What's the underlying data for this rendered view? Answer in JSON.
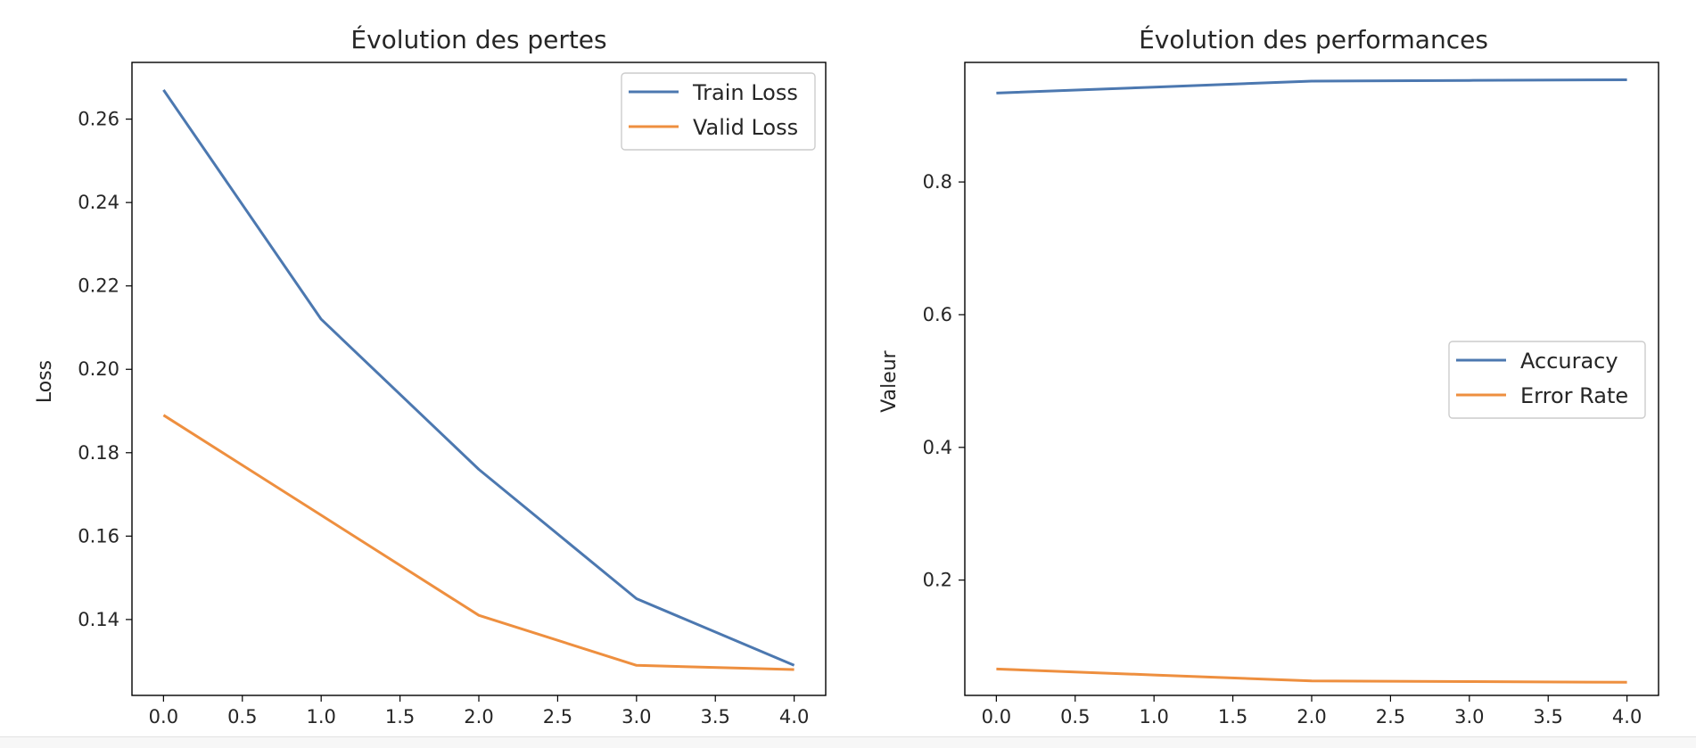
{
  "chart_data": [
    {
      "type": "line",
      "title": "Évolution des pertes",
      "xlabel": "",
      "ylabel": "Loss",
      "x": [
        0,
        1,
        2,
        3,
        4
      ],
      "xlim": [
        -0.2,
        4.2
      ],
      "ylim": [
        0.1218,
        0.2736
      ],
      "xticks": [
        0.0,
        0.5,
        1.0,
        1.5,
        2.0,
        2.5,
        3.0,
        3.5,
        4.0
      ],
      "xtick_labels": [
        "0.0",
        "0.5",
        "1.0",
        "1.5",
        "2.0",
        "2.5",
        "3.0",
        "3.5",
        "4.0"
      ],
      "yticks": [
        0.14,
        0.16,
        0.18,
        0.2,
        0.22,
        0.24,
        0.26
      ],
      "ytick_labels": [
        "0.14",
        "0.16",
        "0.18",
        "0.20",
        "0.22",
        "0.24",
        "0.26"
      ],
      "grid": false,
      "legend": "top-right",
      "series": [
        {
          "name": "Train Loss",
          "color": "#4c78b0",
          "values": [
            0.267,
            0.212,
            0.176,
            0.145,
            0.129
          ]
        },
        {
          "name": "Valid Loss",
          "color": "#ee8f3f",
          "values": [
            0.189,
            0.165,
            0.141,
            0.129,
            0.128
          ]
        }
      ]
    },
    {
      "type": "line",
      "title": "Évolution des performances",
      "xlabel": "",
      "ylabel": "Valeur",
      "x": [
        0,
        1,
        2,
        3,
        4
      ],
      "xlim": [
        -0.2,
        4.2
      ],
      "ylim": [
        0.0262,
        0.9802
      ],
      "xticks": [
        0.0,
        0.5,
        1.0,
        1.5,
        2.0,
        2.5,
        3.0,
        3.5,
        4.0
      ],
      "xtick_labels": [
        "0.0",
        "0.5",
        "1.0",
        "1.5",
        "2.0",
        "2.5",
        "3.0",
        "3.5",
        "4.0"
      ],
      "yticks": [
        0.2,
        0.4,
        0.6,
        0.8
      ],
      "ytick_labels": [
        "0.2",
        "0.4",
        "0.6",
        "0.8"
      ],
      "grid": false,
      "legend": "center-right",
      "series": [
        {
          "name": "Accuracy",
          "color": "#4c78b0",
          "values": [
            0.934,
            0.943,
            0.952,
            0.953,
            0.954
          ]
        },
        {
          "name": "Error Rate",
          "color": "#ee8f3f",
          "values": [
            0.066,
            0.057,
            0.048,
            0.047,
            0.046
          ]
        }
      ]
    }
  ]
}
